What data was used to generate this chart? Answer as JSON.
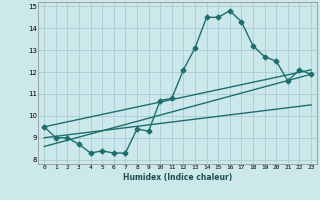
{
  "xlabel": "Humidex (Indice chaleur)",
  "xlim": [
    -0.5,
    23.5
  ],
  "ylim": [
    7.8,
    15.2
  ],
  "xticks": [
    0,
    1,
    2,
    3,
    4,
    5,
    6,
    7,
    8,
    9,
    10,
    11,
    12,
    13,
    14,
    15,
    16,
    17,
    18,
    19,
    20,
    21,
    22,
    23
  ],
  "yticks": [
    8,
    9,
    10,
    11,
    12,
    13,
    14,
    15
  ],
  "background_color": "#cce8ea",
  "grid_color": "#aacdd2",
  "line_color": "#1a7070",
  "line_width": 1.0,
  "marker_size": 2.5,
  "line1_x": [
    0,
    1,
    2,
    3,
    4,
    5,
    6,
    7,
    8,
    9,
    10,
    11,
    12,
    13,
    14,
    15,
    16,
    17,
    18,
    19,
    20,
    21,
    22,
    23
  ],
  "line1_y": [
    9.5,
    9.0,
    9.0,
    8.7,
    8.3,
    8.4,
    8.3,
    8.3,
    9.4,
    9.3,
    10.7,
    10.8,
    12.1,
    13.1,
    14.5,
    14.5,
    14.8,
    14.3,
    13.2,
    12.7,
    12.5,
    11.6,
    12.1,
    11.9
  ],
  "line2_x": [
    0,
    23
  ],
  "line2_y": [
    9.5,
    12.1
  ],
  "line3_x": [
    0,
    23
  ],
  "line3_y": [
    8.6,
    11.9
  ],
  "line4_x": [
    0,
    23
  ],
  "line4_y": [
    9.0,
    10.5
  ]
}
